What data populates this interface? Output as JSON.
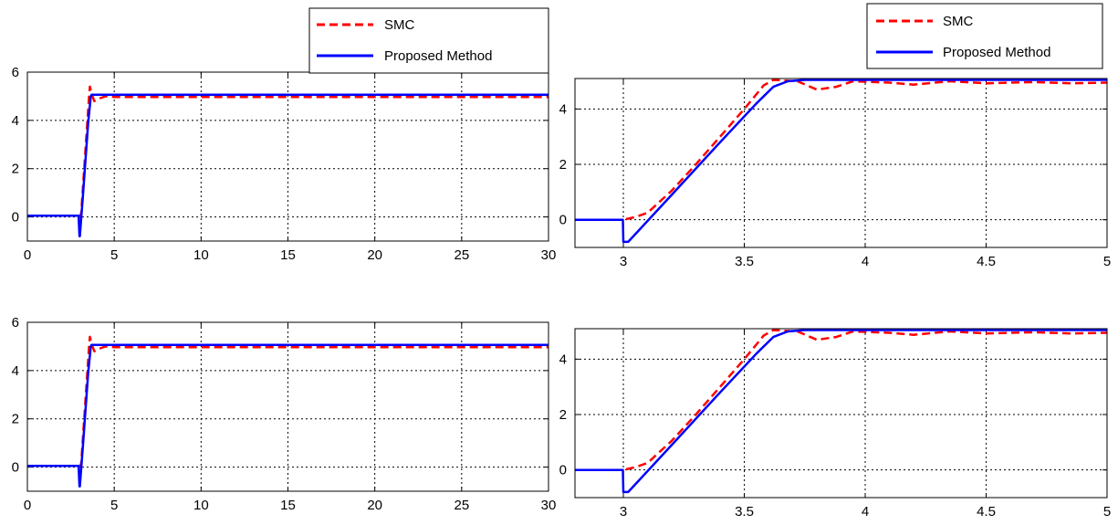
{
  "legend": {
    "entries": [
      {
        "label": "SMC",
        "color": "#ff0000",
        "style": "dashed"
      },
      {
        "label": "Proposed Method",
        "color": "#0000ff",
        "style": "solid"
      }
    ]
  },
  "chart_data": [
    {
      "type": "line",
      "xlim": [
        0,
        30
      ],
      "ylim": [
        -1,
        6
      ],
      "xticks": [
        0,
        5,
        10,
        15,
        20,
        25,
        30
      ],
      "yticks": [
        0,
        2,
        4,
        6
      ],
      "grid": true,
      "legend": "top-right",
      "series": [
        {
          "name": "SMC",
          "color": "#ff0000",
          "style": "dashed",
          "x": [
            0,
            2.9,
            3.0,
            3.1,
            3.55,
            3.6,
            3.75,
            3.85,
            4.2,
            4.5,
            5,
            30
          ],
          "y": [
            0.05,
            0.05,
            0.0,
            0.15,
            5.0,
            5.4,
            5.0,
            4.8,
            4.92,
            5.0,
            4.97,
            4.97
          ]
        },
        {
          "name": "Proposed Method",
          "color": "#0000ff",
          "style": "solid",
          "x": [
            0,
            2.95,
            3.0,
            3.02,
            3.2,
            3.5,
            3.65,
            3.7,
            30
          ],
          "y": [
            0.05,
            0.05,
            -0.8,
            -0.8,
            0.9,
            3.9,
            5.0,
            5.06,
            5.06
          ]
        }
      ]
    },
    {
      "type": "line",
      "xlim": [
        2.8,
        5
      ],
      "ylim": [
        -1,
        5.1
      ],
      "xticks": [
        3,
        3.5,
        4,
        4.5,
        5
      ],
      "yticks": [
        0,
        2,
        4
      ],
      "grid": true,
      "legend": "top-right",
      "series": [
        {
          "name": "SMC",
          "color": "#ff0000",
          "style": "dashed",
          "x": [
            2.8,
            3.0,
            3.05,
            3.1,
            3.2,
            3.3,
            3.4,
            3.5,
            3.58,
            3.62,
            3.72,
            3.8,
            3.88,
            3.95,
            4.1,
            4.2,
            4.35,
            4.5,
            4.7,
            4.85,
            5.0
          ],
          "y": [
            0.0,
            0.0,
            0.1,
            0.25,
            1.05,
            2.0,
            3.0,
            4.0,
            4.85,
            5.05,
            5.0,
            4.7,
            4.8,
            5.0,
            4.95,
            4.88,
            5.0,
            4.93,
            4.97,
            4.93,
            4.95
          ]
        },
        {
          "name": "Proposed Method",
          "color": "#0000ff",
          "style": "solid",
          "x": [
            2.8,
            2.998,
            3.0,
            3.02,
            3.2,
            3.4,
            3.55,
            3.62,
            3.68,
            3.75,
            3.85,
            4.0,
            5.0
          ],
          "y": [
            0.0,
            0.0,
            -0.8,
            -0.8,
            0.9,
            2.8,
            4.2,
            4.8,
            5.0,
            5.05,
            5.05,
            5.05,
            5.05
          ]
        }
      ]
    },
    {
      "type": "line",
      "xlim": [
        0,
        30
      ],
      "ylim": [
        -1,
        6
      ],
      "xticks": [
        0,
        5,
        10,
        15,
        20,
        25,
        30
      ],
      "yticks": [
        0,
        2,
        4,
        6
      ],
      "grid": true,
      "series": [
        {
          "name": "SMC",
          "color": "#ff0000",
          "style": "dashed",
          "x": [
            0,
            2.9,
            3.0,
            3.1,
            3.55,
            3.6,
            3.75,
            3.85,
            4.2,
            4.5,
            5,
            30
          ],
          "y": [
            0.05,
            0.05,
            0.0,
            0.15,
            5.0,
            5.4,
            5.0,
            4.8,
            4.92,
            5.0,
            4.97,
            4.97
          ]
        },
        {
          "name": "Proposed Method",
          "color": "#0000ff",
          "style": "solid",
          "x": [
            0,
            2.95,
            3.0,
            3.02,
            3.2,
            3.5,
            3.65,
            3.7,
            30
          ],
          "y": [
            0.05,
            0.05,
            -0.8,
            -0.8,
            0.9,
            3.9,
            5.0,
            5.06,
            5.06
          ]
        }
      ]
    },
    {
      "type": "line",
      "xlim": [
        2.8,
        5
      ],
      "ylim": [
        -1,
        5.1
      ],
      "xticks": [
        3,
        3.5,
        4,
        4.5,
        5
      ],
      "yticks": [
        0,
        2,
        4
      ],
      "grid": true,
      "series": [
        {
          "name": "SMC",
          "color": "#ff0000",
          "style": "dashed",
          "x": [
            2.8,
            3.0,
            3.05,
            3.1,
            3.2,
            3.3,
            3.4,
            3.5,
            3.58,
            3.62,
            3.72,
            3.8,
            3.88,
            3.95,
            4.1,
            4.2,
            4.35,
            4.5,
            4.7,
            4.85,
            5.0
          ],
          "y": [
            0.0,
            0.0,
            0.1,
            0.25,
            1.05,
            2.0,
            3.0,
            4.0,
            4.85,
            5.05,
            5.0,
            4.7,
            4.8,
            5.0,
            4.95,
            4.88,
            5.0,
            4.93,
            4.97,
            4.93,
            4.95
          ]
        },
        {
          "name": "Proposed Method",
          "color": "#0000ff",
          "style": "solid",
          "x": [
            2.8,
            2.998,
            3.0,
            3.02,
            3.2,
            3.4,
            3.55,
            3.62,
            3.68,
            3.75,
            3.85,
            4.0,
            5.0
          ],
          "y": [
            0.0,
            0.0,
            -0.8,
            -0.8,
            0.9,
            2.8,
            4.2,
            4.8,
            5.0,
            5.05,
            5.05,
            5.05,
            5.05
          ]
        }
      ]
    }
  ]
}
